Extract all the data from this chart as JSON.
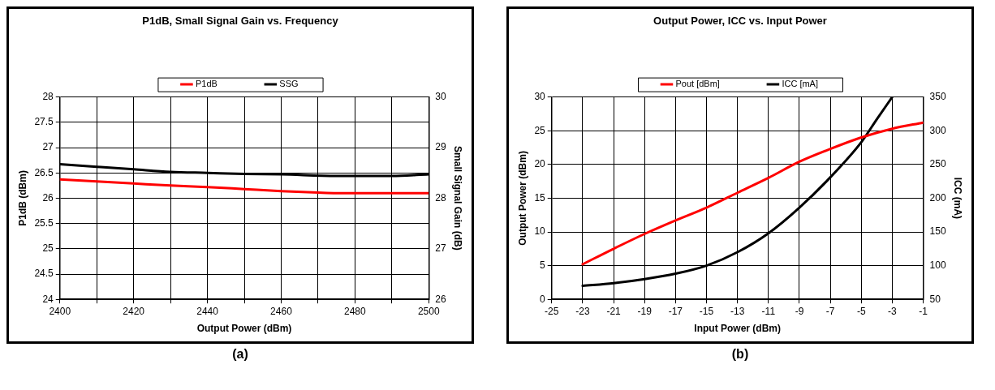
{
  "chart_data": [
    {
      "type": "line",
      "title": "P1dB, Small Signal Gain vs. Frequency",
      "xlabel": "Output Power (dBm)",
      "ylabel": "P1dB (dBm)",
      "y2label": "Small Signal Gain (dB)",
      "annotations": [
        "(a)"
      ],
      "xlim": [
        2400,
        2500
      ],
      "xticks": [
        2400,
        {
          "value": 2410,
          "label": null
        },
        2420,
        {
          "value": 2430,
          "label": null
        },
        2440,
        {
          "value": 2450,
          "label": null
        },
        2460,
        {
          "value": 2470,
          "label": null
        },
        2480,
        {
          "value": 2490,
          "label": null
        },
        2500
      ],
      "ylim": [
        24,
        28
      ],
      "yticks": [
        24,
        24.5,
        25,
        25.5,
        26,
        26.5,
        27,
        27.5,
        28
      ],
      "y2lim": [
        26,
        30
      ],
      "y2ticks": [
        26,
        27,
        28,
        29,
        30
      ],
      "grid": true,
      "legend": "top",
      "marker": "none",
      "line_style": "solid",
      "series": [
        {
          "name": "P1dB",
          "color": "#ff0000",
          "x": [
            2400,
            2410,
            2420,
            2430,
            2440,
            2450,
            2460,
            2470,
            2475,
            2500
          ],
          "values": [
            26.37,
            26.33,
            26.29,
            26.25,
            26.22,
            26.18,
            26.14,
            26.11,
            26.1,
            26.1
          ]
        },
        {
          "name": "SSG",
          "color": "#000000",
          "axis": "y2",
          "x": [
            2400,
            2410,
            2420,
            2430,
            2440,
            2450,
            2460,
            2475,
            2490,
            2500
          ],
          "values": [
            28.67,
            28.62,
            28.57,
            28.52,
            28.5,
            28.48,
            28.47,
            28.44,
            28.44,
            28.47
          ]
        }
      ]
    },
    {
      "type": "line",
      "title": "Output Power, ICC vs. Input Power",
      "xlabel": "Input Power (dBm)",
      "ylabel": "Output Power (dBm)",
      "y2label": "ICC (mA)",
      "annotations": [
        "(b)"
      ],
      "xlim": [
        -25,
        -1
      ],
      "xticks": [
        -25,
        -23,
        -21,
        -19,
        -17,
        -15,
        -13,
        -11,
        -9,
        -7,
        -5,
        -3,
        -1
      ],
      "ylim": [
        0,
        30
      ],
      "yticks": [
        0,
        5,
        10,
        15,
        20,
        25,
        30
      ],
      "y2lim": [
        50,
        350
      ],
      "y2ticks": [
        50,
        100,
        150,
        200,
        250,
        300,
        350
      ],
      "grid": true,
      "legend": "top",
      "marker": "none",
      "line_style": "solid",
      "series": [
        {
          "name": "Pout [dBm]",
          "color": "#ff0000",
          "x": [
            -23,
            -21,
            -19,
            -17,
            -15,
            -13,
            -11,
            -9,
            -7,
            -5,
            -3,
            -1
          ],
          "values": [
            5.2,
            7.5,
            9.7,
            11.7,
            13.6,
            15.8,
            18,
            20.4,
            22.3,
            24,
            25.3,
            26.2
          ]
        },
        {
          "name": "ICC [mA]",
          "color": "#000000",
          "axis": "y2",
          "x": [
            -23,
            -21,
            -19,
            -17,
            -15,
            -13,
            -11,
            -9,
            -7,
            -5,
            -4,
            -3
          ],
          "values": [
            70,
            74,
            80,
            88,
            100,
            120,
            148,
            186,
            231,
            283,
            317,
            350
          ]
        }
      ]
    }
  ]
}
